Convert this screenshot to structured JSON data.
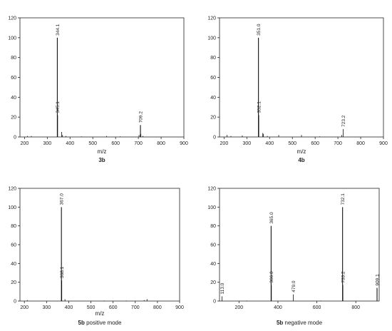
{
  "chart_data": [
    {
      "type": "bar",
      "xlabel": "m/z",
      "ylabel": "",
      "caption": "3b",
      "caption_suffix": "",
      "xlim": [
        180,
        900
      ],
      "ylim": [
        0,
        120
      ],
      "xticks": [
        200,
        300,
        400,
        500,
        600,
        700,
        800,
        900
      ],
      "yticks": [
        0,
        20,
        40,
        60,
        80,
        100,
        120
      ],
      "peaks": [
        {
          "x": 344.1,
          "y": 100,
          "label": "344.1"
        },
        {
          "x": 345.1,
          "y": 22,
          "label": "345.1"
        },
        {
          "x": 709.2,
          "y": 12,
          "label": "709.2"
        },
        {
          "x": 363,
          "y": 5
        },
        {
          "x": 367,
          "y": 2
        },
        {
          "x": 213,
          "y": 1
        },
        {
          "x": 230,
          "y": 1
        },
        {
          "x": 382,
          "y": 1
        },
        {
          "x": 560,
          "y": 1
        },
        {
          "x": 703,
          "y": 2
        },
        {
          "x": 711,
          "y": 3
        },
        {
          "x": 720,
          "y": 1
        },
        {
          "x": 450,
          "y": 0.5
        },
        {
          "x": 620,
          "y": 0.5
        }
      ]
    },
    {
      "type": "bar",
      "xlabel": "m/z",
      "ylabel": "",
      "caption": "4b",
      "caption_suffix": "",
      "xlim": [
        180,
        900
      ],
      "ylim": [
        0,
        120
      ],
      "xticks": [
        200,
        300,
        400,
        500,
        600,
        700,
        800,
        900
      ],
      "yticks": [
        0,
        20,
        40,
        60,
        80,
        100,
        120
      ],
      "peaks": [
        {
          "x": 351.0,
          "y": 100,
          "label": "351.0"
        },
        {
          "x": 352.1,
          "y": 22,
          "label": "352.1"
        },
        {
          "x": 723.2,
          "y": 8,
          "label": "723.2"
        },
        {
          "x": 370,
          "y": 4
        },
        {
          "x": 373,
          "y": 3
        },
        {
          "x": 213,
          "y": 2
        },
        {
          "x": 280,
          "y": 1.5
        },
        {
          "x": 440,
          "y": 2
        },
        {
          "x": 540,
          "y": 2
        },
        {
          "x": 717,
          "y": 2
        },
        {
          "x": 230,
          "y": 1
        },
        {
          "x": 390,
          "y": 1
        },
        {
          "x": 620,
          "y": 0.5
        }
      ]
    },
    {
      "type": "bar",
      "xlabel": "m/z",
      "ylabel": "",
      "caption": "5b",
      "caption_suffix": " positive mode",
      "xlim": [
        180,
        900
      ],
      "ylim": [
        0,
        120
      ],
      "xticks": [
        200,
        300,
        400,
        500,
        600,
        700,
        800,
        900
      ],
      "yticks": [
        0,
        20,
        40,
        60,
        80,
        100,
        120
      ],
      "peaks": [
        {
          "x": 367.0,
          "y": 100,
          "label": "367.0"
        },
        {
          "x": 368.1,
          "y": 22,
          "label": "368.1"
        },
        {
          "x": 383,
          "y": 2
        },
        {
          "x": 213,
          "y": 1
        },
        {
          "x": 560,
          "y": 0.5
        },
        {
          "x": 660,
          "y": 0.5
        },
        {
          "x": 753,
          "y": 2
        },
        {
          "x": 740,
          "y": 1
        }
      ]
    },
    {
      "type": "bar",
      "xlabel": "",
      "ylabel": "",
      "caption": "5b",
      "caption_suffix": " negative mode",
      "xlim": [
        100,
        920
      ],
      "ylim": [
        0,
        120
      ],
      "xticks": [
        200,
        400,
        600,
        800
      ],
      "yticks": [
        0,
        20,
        40,
        60,
        80,
        100,
        120
      ],
      "peaks": [
        {
          "x": 365.0,
          "y": 80,
          "label": "365.0"
        },
        {
          "x": 732.1,
          "y": 100,
          "label": "732.1"
        },
        {
          "x": 366.0,
          "y": 17,
          "label": "366.0"
        },
        {
          "x": 733.2,
          "y": 17,
          "label": "733.2"
        },
        {
          "x": 113.0,
          "y": 5,
          "label": "113.0"
        },
        {
          "x": 479.0,
          "y": 7,
          "label": "479.0"
        },
        {
          "x": 909.1,
          "y": 14,
          "label": "909.1"
        },
        {
          "x": 240,
          "y": 0.5
        },
        {
          "x": 620,
          "y": 0.5
        }
      ]
    }
  ]
}
